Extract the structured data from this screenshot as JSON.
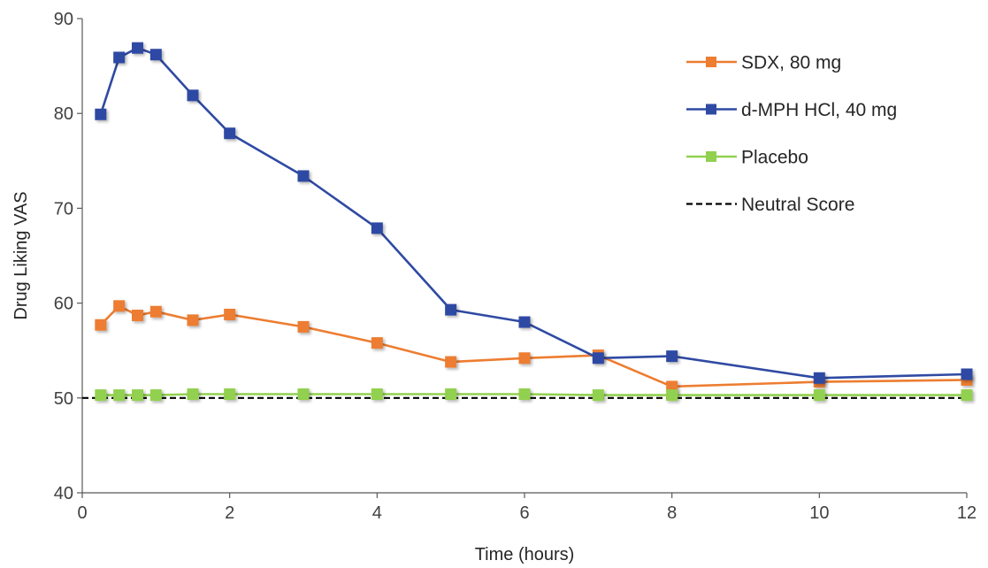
{
  "chart_data": {
    "type": "line",
    "xlabel": "Time (hours)",
    "ylabel": "Drug Liking VAS",
    "xlim": [
      0,
      12
    ],
    "ylim": [
      40,
      90
    ],
    "x_ticks": [
      0,
      2,
      4,
      6,
      8,
      10,
      12
    ],
    "y_ticks": [
      40,
      50,
      60,
      70,
      80,
      90
    ],
    "grid": false,
    "legend_position": "top-right",
    "series": [
      {
        "name": "SDX, 80 mg",
        "color": "#ED7D31",
        "marker": "square",
        "x": [
          0.25,
          0.5,
          0.75,
          1,
          1.5,
          2,
          3,
          4,
          5,
          6,
          7,
          8,
          10,
          12
        ],
        "y": [
          57.7,
          59.7,
          58.7,
          59.1,
          58.2,
          58.8,
          57.5,
          55.8,
          53.8,
          54.2,
          54.5,
          51.2,
          51.7,
          51.9
        ]
      },
      {
        "name": "d-MPH HCl, 40 mg",
        "color": "#2F4AA3",
        "marker": "square",
        "x": [
          0.25,
          0.5,
          0.75,
          1,
          1.5,
          2,
          3,
          4,
          5,
          6,
          7,
          8,
          10,
          12
        ],
        "y": [
          79.9,
          85.9,
          86.9,
          86.2,
          81.9,
          77.9,
          73.4,
          67.9,
          59.3,
          58.0,
          54.2,
          54.4,
          52.1,
          52.5
        ]
      },
      {
        "name": "Placebo",
        "color": "#92D050",
        "marker": "square",
        "x": [
          0.25,
          0.5,
          0.75,
          1,
          1.5,
          2,
          3,
          4,
          5,
          6,
          7,
          8,
          10,
          12
        ],
        "y": [
          50.3,
          50.3,
          50.3,
          50.3,
          50.4,
          50.4,
          50.4,
          50.4,
          50.4,
          50.4,
          50.3,
          50.3,
          50.3,
          50.3
        ]
      },
      {
        "name": "Neutral Score",
        "color": "#000000",
        "style": "dashed",
        "x": [
          0,
          12
        ],
        "y": [
          50,
          50
        ]
      }
    ]
  }
}
